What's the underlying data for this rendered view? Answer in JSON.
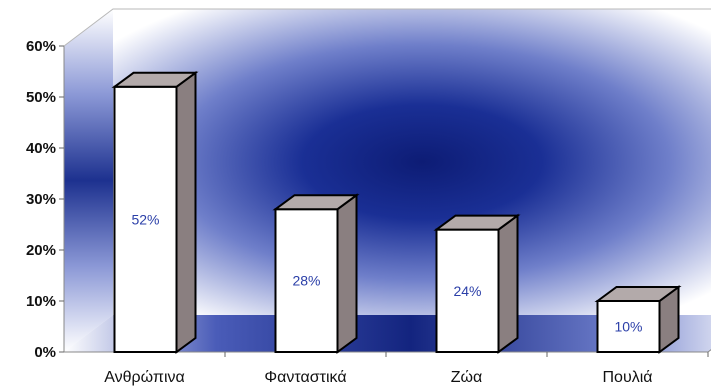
{
  "chart_data": {
    "type": "bar",
    "categories": [
      "Ανθρώπινα",
      "Φανταστικά",
      "Ζώα",
      "Πουλιά"
    ],
    "values": [
      52,
      28,
      24,
      10
    ],
    "data_labels": [
      "52%",
      "28%",
      "24%",
      "10%"
    ],
    "y_tick_labels": [
      "0%",
      "10%",
      "20%",
      "30%",
      "40%",
      "50%",
      "60%"
    ],
    "ylim": [
      0,
      60
    ],
    "grid": false,
    "three_d": true,
    "colors": {
      "bar_front": "#ffffff",
      "bar_side": "#8a7f80",
      "bar_top": "#b3aaaa",
      "wall_gradient_center": "#10207a",
      "wall_gradient_edge": "#ffffff",
      "data_label": "#2b3fa8"
    }
  }
}
